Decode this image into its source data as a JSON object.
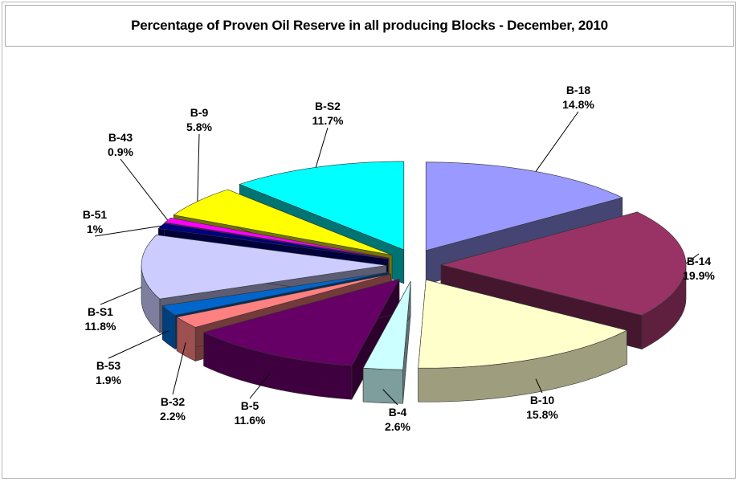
{
  "chart_data": {
    "type": "pie",
    "title": "Percentage of  Proven Oil Reserve in all producing Blocks - December, 2010",
    "slices": [
      {
        "label": "B-18",
        "value_text": "14.8%",
        "value": 14.8,
        "color": "#9999ff"
      },
      {
        "label": "B-14",
        "value_text": "19.9%",
        "value": 19.9,
        "color": "#993366"
      },
      {
        "label": "B-10",
        "value_text": "15.8%",
        "value": 15.8,
        "color": "#ffffcc"
      },
      {
        "label": "B-4",
        "value_text": "2.6%",
        "value": 2.6,
        "color": "#ccffff"
      },
      {
        "label": "B-5",
        "value_text": "11.6%",
        "value": 11.6,
        "color": "#660066"
      },
      {
        "label": "B-32",
        "value_text": "2.2%",
        "value": 2.2,
        "color": "#ff8080"
      },
      {
        "label": "B-53",
        "value_text": "1.9%",
        "value": 1.9,
        "color": "#0066cc"
      },
      {
        "label": "B-S1",
        "value_text": "11.8%",
        "value": 11.8,
        "color": "#ccccff"
      },
      {
        "label": "B-51",
        "value_text": "1%",
        "value": 1.0,
        "color": "#000080"
      },
      {
        "label": "B-43",
        "value_text": "0.9%",
        "value": 0.9,
        "color": "#ff00ff"
      },
      {
        "label": "B-9",
        "value_text": "5.8%",
        "value": 5.8,
        "color": "#ffff00"
      },
      {
        "label": "B-S2",
        "value_text": "11.7%",
        "value": 11.7,
        "color": "#00ffff"
      }
    ],
    "legend": "none"
  }
}
